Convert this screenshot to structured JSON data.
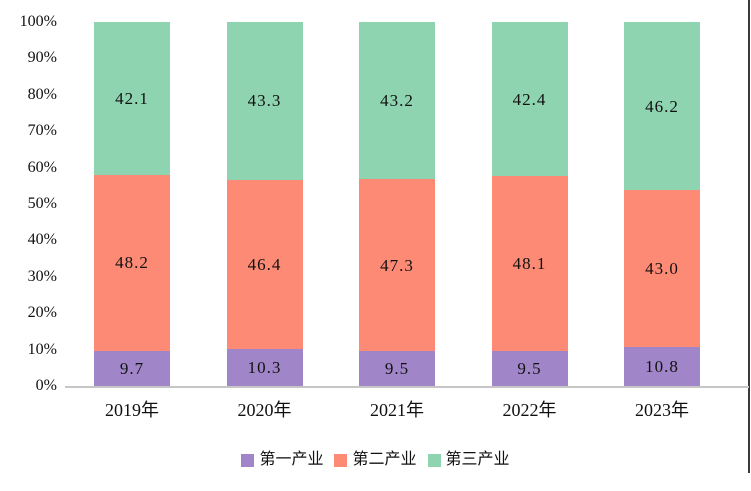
{
  "chart_data": {
    "type": "bar",
    "subtype": "stacked-percent",
    "categories": [
      "2019年",
      "2020年",
      "2021年",
      "2022年",
      "2023年"
    ],
    "series": [
      {
        "name": "第一产业",
        "color": "#A086C8",
        "values": [
          9.7,
          10.3,
          9.5,
          9.5,
          10.8
        ]
      },
      {
        "name": "第二产业",
        "color": "#FC8A75",
        "values": [
          48.2,
          46.4,
          47.3,
          48.1,
          43.0
        ]
      },
      {
        "name": "第三产业",
        "color": "#8FD4B0",
        "values": [
          42.1,
          43.3,
          43.2,
          42.4,
          46.2
        ]
      }
    ],
    "y_ticks": [
      "0%",
      "10%",
      "20%",
      "30%",
      "40%",
      "50%",
      "60%",
      "70%",
      "80%",
      "90%",
      "100%"
    ],
    "ylim": [
      0,
      100
    ],
    "grid": false,
    "legend_position": "bottom",
    "data_labels_decimals": 1
  },
  "colors": {
    "background": "#FFFFFF",
    "text": "#111111",
    "axis_line": "#C6C6C6",
    "page_edge_line": "#3A3A3A"
  }
}
